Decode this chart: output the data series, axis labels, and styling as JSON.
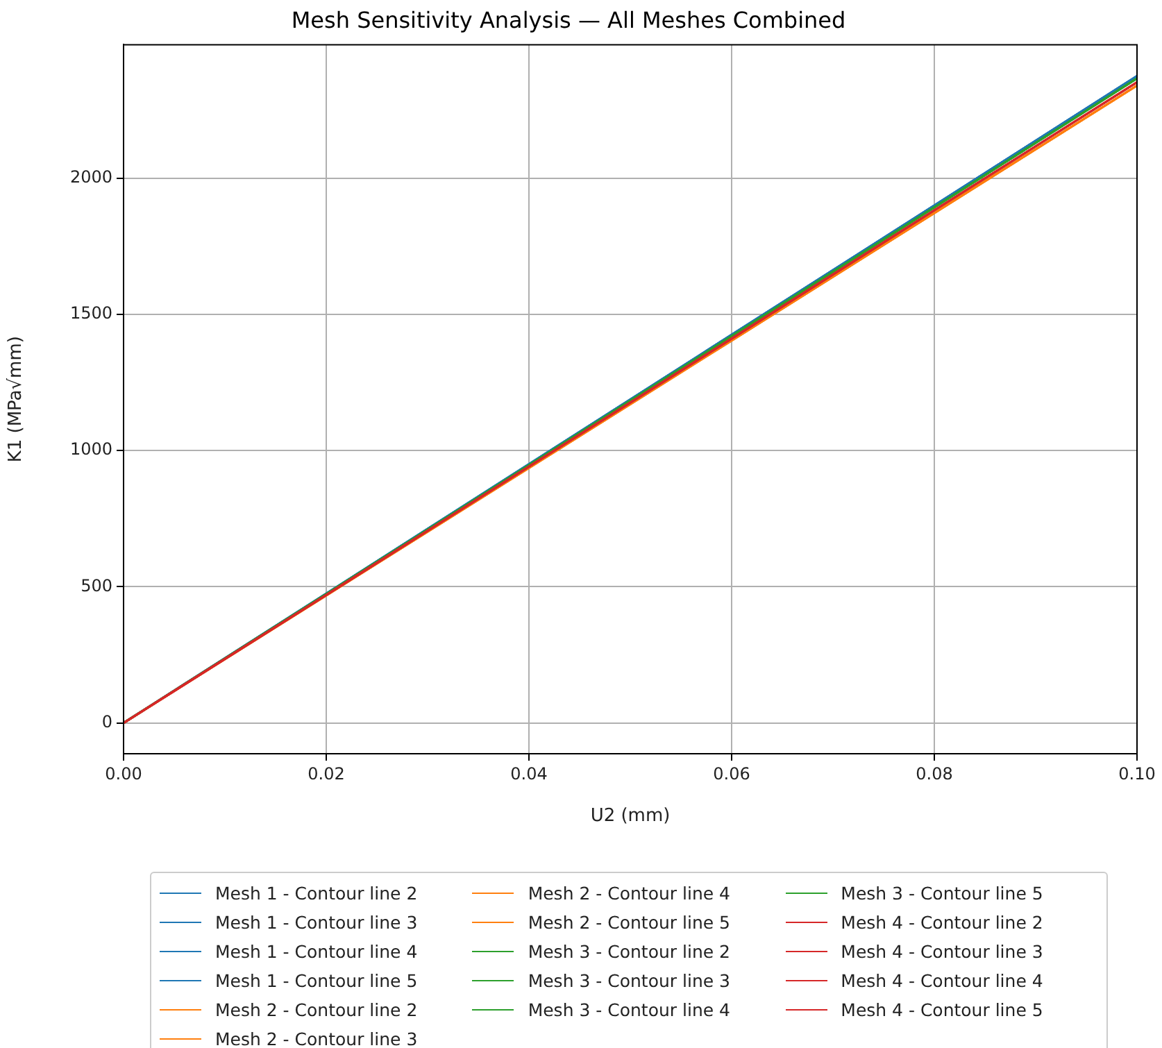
{
  "chart_data": {
    "type": "line",
    "title": "Mesh Sensitivity Analysis — All Meshes Combined",
    "xlabel": "U2 (mm)",
    "ylabel": "K1 (MPa√mm)",
    "x": [
      0,
      0.02,
      0.04,
      0.06,
      0.08,
      0.1
    ],
    "series": [
      {
        "name": "Mesh 1 - Contour line 2",
        "color": "#1f77b4",
        "values": [
          0,
          475,
          950,
          1425,
          1900,
          2375
        ]
      },
      {
        "name": "Mesh 1 - Contour line 3",
        "color": "#1f77b4",
        "values": [
          0,
          475,
          950,
          1425,
          1900,
          2375
        ]
      },
      {
        "name": "Mesh 1 - Contour line 4",
        "color": "#1f77b4",
        "values": [
          0,
          475,
          950,
          1425,
          1900,
          2375
        ]
      },
      {
        "name": "Mesh 1 - Contour line 5",
        "color": "#1f77b4",
        "values": [
          0,
          475,
          950,
          1425,
          1900,
          2375
        ]
      },
      {
        "name": "Mesh 2 - Contour line 2",
        "color": "#ff7f0e",
        "values": [
          0,
          468,
          936,
          1404,
          1872,
          2340
        ]
      },
      {
        "name": "Mesh 2 - Contour line 3",
        "color": "#ff7f0e",
        "values": [
          0,
          468,
          936,
          1404,
          1872,
          2340
        ]
      },
      {
        "name": "Mesh 2 - Contour line 4",
        "color": "#ff7f0e",
        "values": [
          0,
          468,
          936,
          1404,
          1872,
          2340
        ]
      },
      {
        "name": "Mesh 2 - Contour line 5",
        "color": "#ff7f0e",
        "values": [
          0,
          468,
          936,
          1404,
          1872,
          2340
        ]
      },
      {
        "name": "Mesh 3 - Contour line 2",
        "color": "#2ca02c",
        "values": [
          0,
          473,
          946,
          1420,
          1893,
          2366
        ]
      },
      {
        "name": "Mesh 3 - Contour line 3",
        "color": "#2ca02c",
        "values": [
          0,
          473,
          946,
          1420,
          1893,
          2366
        ]
      },
      {
        "name": "Mesh 3 - Contour line 4",
        "color": "#2ca02c",
        "values": [
          0,
          473,
          946,
          1420,
          1893,
          2366
        ]
      },
      {
        "name": "Mesh 3 - Contour line 5",
        "color": "#2ca02c",
        "values": [
          0,
          473,
          946,
          1420,
          1893,
          2366
        ]
      },
      {
        "name": "Mesh 4 - Contour line 2",
        "color": "#d62728",
        "values": [
          0,
          470,
          941,
          1411,
          1882,
          2352
        ]
      },
      {
        "name": "Mesh 4 - Contour line 3",
        "color": "#d62728",
        "values": [
          0,
          470,
          941,
          1411,
          1882,
          2352
        ]
      },
      {
        "name": "Mesh 4 - Contour line 4",
        "color": "#d62728",
        "values": [
          0,
          470,
          941,
          1411,
          1882,
          2352
        ]
      },
      {
        "name": "Mesh 4 - Contour line 5",
        "color": "#d62728",
        "values": [
          0,
          470,
          941,
          1411,
          1882,
          2352
        ]
      }
    ],
    "xlim": [
      0,
      0.1
    ],
    "ylim": [
      -113,
      2490
    ],
    "xticks": [
      {
        "value": 0,
        "label": "0.00"
      },
      0.02,
      0.04,
      0.06,
      0.08,
      {
        "value": 0.1,
        "label": "0.10"
      }
    ],
    "yticks": [
      0,
      500,
      1000,
      1500,
      2000
    ],
    "grid": true,
    "legend": "bottom",
    "marker": "none",
    "line_style": "solid"
  }
}
